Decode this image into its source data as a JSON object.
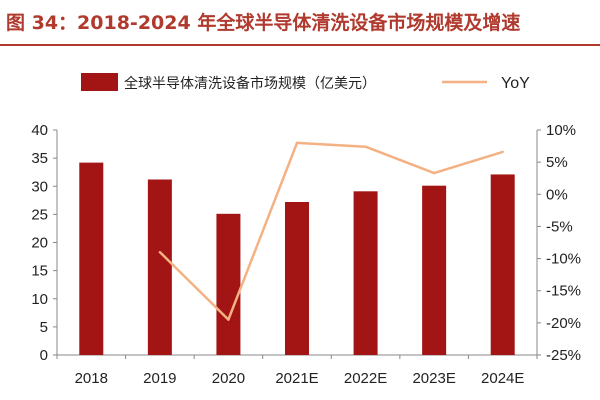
{
  "figure": {
    "title": "图 34：2018-2024 年全球半导体清洗设备市场规模及增速"
  },
  "colors": {
    "title": "#b03a2e",
    "bar": "#a31515",
    "line": "#f4b183",
    "axis": "#888888"
  },
  "chart_data": {
    "type": "bar",
    "categories": [
      "2018",
      "2019",
      "2020",
      "2021E",
      "2022E",
      "2023E",
      "2024E"
    ],
    "series": [
      {
        "name": "全球半导体清洗设备市场规模（亿美元）",
        "type": "bar",
        "axis": "left",
        "values": [
          34.2,
          31.2,
          25.1,
          27.2,
          29.1,
          30.1,
          32.1
        ]
      },
      {
        "name": "YoY",
        "type": "line",
        "axis": "right",
        "values": [
          null,
          -9.0,
          -19.5,
          8.0,
          7.4,
          3.3,
          6.6
        ]
      }
    ],
    "y_left": {
      "range": [
        0,
        40
      ],
      "ticks": [
        "0",
        "5",
        "10",
        "15",
        "20",
        "25",
        "30",
        "35",
        "40"
      ]
    },
    "y_right": {
      "range": [
        -25,
        10
      ],
      "ticks": [
        "-25%",
        "-20%",
        "-15%",
        "-10%",
        "-5%",
        "0%",
        "5%",
        "10%"
      ]
    },
    "legend": "top",
    "grid": false
  }
}
